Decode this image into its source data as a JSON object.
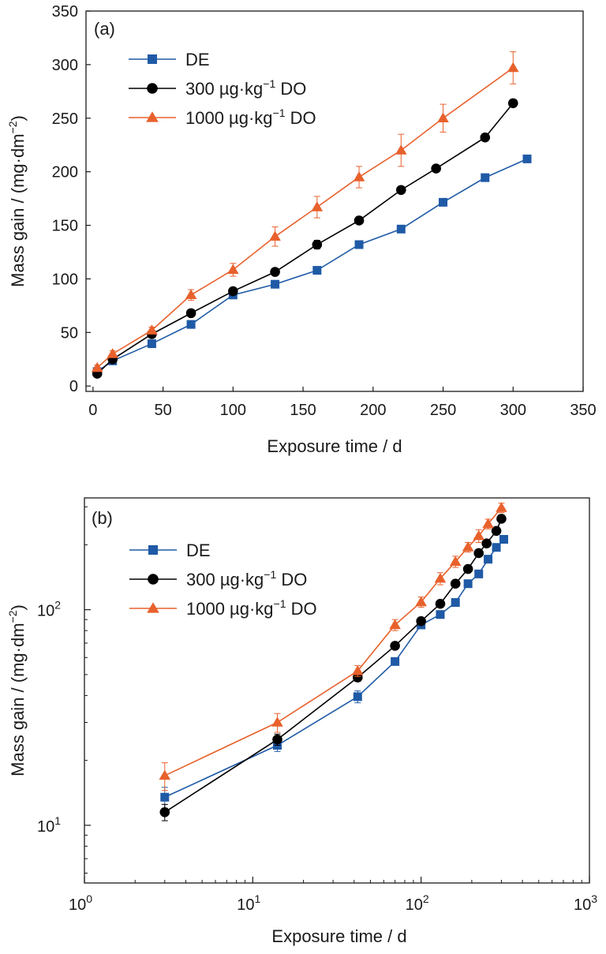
{
  "chart_data": [
    {
      "type": "line",
      "panel_label": "(a)",
      "xlabel": "Exposure time / d",
      "ylabel": "Mass gain / (mg·dm",
      "ylabel_sup": "−2",
      "ylabel_end": ")",
      "xlim": [
        -5,
        350
      ],
      "ylim": [
        -5,
        350
      ],
      "xscale": "linear",
      "yscale": "linear",
      "xticks": [
        0,
        50,
        100,
        150,
        200,
        250,
        300,
        350
      ],
      "yticks": [
        0,
        50,
        100,
        150,
        200,
        250,
        300,
        350
      ],
      "xtick_labels": [
        "0",
        "50",
        "100",
        "150",
        "200",
        "250",
        "300",
        "350"
      ],
      "ytick_labels": [
        "0",
        "50",
        "100",
        "150",
        "200",
        "250",
        "300",
        "350"
      ],
      "grid": false,
      "legend_position": "top-left",
      "series": [
        {
          "name": "DE",
          "color": "#1f5aa6",
          "marker": "square",
          "x": [
            3,
            14,
            42,
            70,
            100,
            130,
            160,
            190,
            220,
            250,
            280,
            310
          ],
          "y": [
            13.5,
            23.5,
            39.5,
            57.5,
            85,
            95,
            108,
            132,
            146.5,
            171.5,
            194.5,
            212
          ],
          "err": [
            1.5,
            1.5,
            2.5,
            2,
            2,
            1.5,
            2,
            2,
            2,
            2,
            2,
            2
          ]
        },
        {
          "name": "300 µg·kg",
          "name_sup": "−1",
          "name_end": " DO",
          "color": "#000000",
          "marker": "circle",
          "x": [
            3,
            14,
            42,
            70,
            100,
            130,
            160,
            190,
            220,
            245,
            280,
            300
          ],
          "y": [
            11.5,
            25,
            48.5,
            68,
            88.5,
            106.5,
            132,
            154.5,
            183,
            203,
            232,
            264
          ],
          "err": [
            1,
            1.5,
            2,
            2,
            2,
            3,
            4,
            2,
            2,
            2,
            2,
            2
          ]
        },
        {
          "name": "1000 µg·kg",
          "name_sup": "−1",
          "name_end": " DO",
          "color": "#e8612c",
          "marker": "triangle",
          "x": [
            3,
            14,
            42,
            70,
            100,
            130,
            160,
            190,
            220,
            250,
            300
          ],
          "y": [
            17,
            30,
            52,
            85,
            108.5,
            139.5,
            167,
            195,
            220,
            250,
            297
          ],
          "err": [
            2.5,
            3,
            3,
            5,
            6,
            9,
            10,
            10,
            15,
            13,
            15
          ]
        }
      ]
    },
    {
      "type": "line",
      "panel_label": "(b)",
      "xlabel": "Exposure time / d",
      "ylabel": "Mass gain / (mg·dm",
      "ylabel_sup": "−2",
      "ylabel_end": ")",
      "xscale": "log",
      "yscale": "log",
      "xlim": [
        1,
        1000
      ],
      "ylim": [
        5.4,
        330
      ],
      "xticks": [
        1,
        10,
        100,
        1000
      ],
      "yticks": [
        10,
        100
      ],
      "xtick_base": "10",
      "xtick_exps": [
        "0",
        "1",
        "2",
        "3"
      ],
      "ytick_base": "10",
      "ytick_exps": [
        "1",
        "2"
      ],
      "grid": false,
      "legend_position": "top-left",
      "series": [
        {
          "name": "DE",
          "color": "#1f5aa6",
          "marker": "square",
          "x": [
            3,
            14,
            42,
            70,
            100,
            130,
            160,
            190,
            220,
            250,
            280,
            310
          ],
          "y": [
            13.5,
            23.5,
            39.5,
            57.5,
            85,
            95,
            108,
            132,
            146.5,
            171.5,
            194.5,
            212
          ],
          "err": [
            1.5,
            1.5,
            2.5,
            2,
            2,
            1.5,
            2,
            2,
            2,
            2,
            2,
            2
          ]
        },
        {
          "name": "300 µg·kg",
          "name_sup": "−1",
          "name_end": " DO",
          "color": "#000000",
          "marker": "circle",
          "x": [
            3,
            14,
            42,
            70,
            100,
            130,
            160,
            190,
            220,
            245,
            280,
            300
          ],
          "y": [
            11.5,
            25,
            48.5,
            68,
            88.5,
            106.5,
            132,
            154.5,
            183,
            203,
            232,
            264
          ],
          "err": [
            1,
            1.5,
            2,
            2,
            2,
            3,
            4,
            2,
            2,
            2,
            2,
            2
          ]
        },
        {
          "name": "1000 µg·kg",
          "name_sup": "−1",
          "name_end": " DO",
          "color": "#e8612c",
          "marker": "triangle",
          "x": [
            3,
            14,
            42,
            70,
            100,
            130,
            160,
            190,
            220,
            250,
            300
          ],
          "y": [
            17,
            30,
            52,
            85,
            108.5,
            139.5,
            167,
            195,
            220,
            250,
            297
          ],
          "err": [
            2.5,
            3,
            3,
            5,
            6,
            9,
            10,
            10,
            15,
            13,
            15
          ]
        }
      ]
    }
  ]
}
